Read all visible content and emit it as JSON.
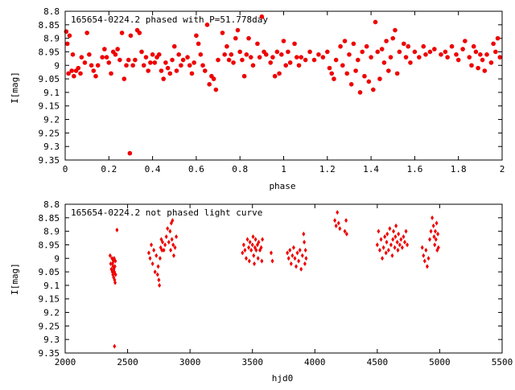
{
  "chart_data": [
    {
      "type": "scatter",
      "title": "165654-0224.2 phased with P=51.778day",
      "xlabel": "phase",
      "ylabel": "I[mag]",
      "xlim": [
        0,
        2
      ],
      "ylim": [
        9.35,
        8.8
      ],
      "y_inverted": true,
      "xticks": [
        "0",
        "0.2",
        "0.4",
        "0.6",
        "0.8",
        "1",
        "1.2",
        "1.4",
        "1.6",
        "1.8",
        "2"
      ],
      "yticks": [
        "8.8",
        "8.85",
        "8.9",
        "8.95",
        "9",
        "9.05",
        "9.1",
        "9.15",
        "9.2",
        "9.25",
        "9.3",
        "9.35"
      ],
      "grid": false,
      "marker_color": "#ee0000",
      "points": [
        [
          0.005,
          8.875
        ],
        [
          0.01,
          8.92
        ],
        [
          0.015,
          9.03
        ],
        [
          0.02,
          8.89
        ],
        [
          0.03,
          9.02
        ],
        [
          0.035,
          8.96
        ],
        [
          0.04,
          9.04
        ],
        [
          0.05,
          9.02
        ],
        [
          0.06,
          9.01
        ],
        [
          0.07,
          9.03
        ],
        [
          0.075,
          8.97
        ],
        [
          0.09,
          8.99
        ],
        [
          0.1,
          8.88
        ],
        [
          0.11,
          8.96
        ],
        [
          0.12,
          9.0
        ],
        [
          0.13,
          9.02
        ],
        [
          0.14,
          9.04
        ],
        [
          0.15,
          9.0
        ],
        [
          0.17,
          8.97
        ],
        [
          0.18,
          8.94
        ],
        [
          0.19,
          8.97
        ],
        [
          0.2,
          8.99
        ],
        [
          0.21,
          9.03
        ],
        [
          0.22,
          8.95
        ],
        [
          0.23,
          8.96
        ],
        [
          0.24,
          8.94
        ],
        [
          0.25,
          8.98
        ],
        [
          0.26,
          8.88
        ],
        [
          0.27,
          9.05
        ],
        [
          0.28,
          9.0
        ],
        [
          0.29,
          8.98
        ],
        [
          0.296,
          9.325
        ],
        [
          0.3,
          8.89
        ],
        [
          0.31,
          9.0
        ],
        [
          0.32,
          8.98
        ],
        [
          0.33,
          8.87
        ],
        [
          0.34,
          8.88
        ],
        [
          0.35,
          8.95
        ],
        [
          0.36,
          9.0
        ],
        [
          0.37,
          8.97
        ],
        [
          0.38,
          9.02
        ],
        [
          0.39,
          8.99
        ],
        [
          0.4,
          8.96
        ],
        [
          0.41,
          8.99
        ],
        [
          0.42,
          8.97
        ],
        [
          0.43,
          8.96
        ],
        [
          0.44,
          9.02
        ],
        [
          0.45,
          9.05
        ],
        [
          0.46,
          8.99
        ],
        [
          0.47,
          9.01
        ],
        [
          0.48,
          9.03
        ],
        [
          0.49,
          8.98
        ],
        [
          0.5,
          8.93
        ],
        [
          0.51,
          9.02
        ],
        [
          0.52,
          8.96
        ],
        [
          0.53,
          9.0
        ],
        [
          0.54,
          8.98
        ],
        [
          0.56,
          8.97
        ],
        [
          0.57,
          9.0
        ],
        [
          0.58,
          9.03
        ],
        [
          0.59,
          8.99
        ],
        [
          0.6,
          8.89
        ],
        [
          0.61,
          8.92
        ],
        [
          0.62,
          8.96
        ],
        [
          0.63,
          9.0
        ],
        [
          0.64,
          9.02
        ],
        [
          0.65,
          8.85
        ],
        [
          0.66,
          9.07
        ],
        [
          0.67,
          9.04
        ],
        [
          0.68,
          9.05
        ],
        [
          0.69,
          9.09
        ],
        [
          0.7,
          8.98
        ],
        [
          0.72,
          8.88
        ],
        [
          0.73,
          8.96
        ],
        [
          0.74,
          8.93
        ],
        [
          0.75,
          8.98
        ],
        [
          0.76,
          8.96
        ],
        [
          0.77,
          8.99
        ],
        [
          0.78,
          8.9
        ],
        [
          0.79,
          8.87
        ],
        [
          0.8,
          8.95
        ],
        [
          0.81,
          8.98
        ],
        [
          0.82,
          9.04
        ],
        [
          0.83,
          8.96
        ],
        [
          0.84,
          8.9
        ],
        [
          0.85,
          8.97
        ],
        [
          0.86,
          9.0
        ],
        [
          0.88,
          8.92
        ],
        [
          0.89,
          8.97
        ],
        [
          0.9,
          8.82
        ],
        [
          0.91,
          8.95
        ],
        [
          0.92,
          8.96
        ],
        [
          0.94,
          8.99
        ],
        [
          0.95,
          8.97
        ],
        [
          0.96,
          9.04
        ],
        [
          0.97,
          8.95
        ],
        [
          0.98,
          9.03
        ],
        [
          0.99,
          8.96
        ],
        [
          1.0,
          8.91
        ],
        [
          1.01,
          9.0
        ],
        [
          1.02,
          8.95
        ],
        [
          1.03,
          8.99
        ],
        [
          1.05,
          8.92
        ],
        [
          1.06,
          8.97
        ],
        [
          1.07,
          9.0
        ],
        [
          1.08,
          8.97
        ],
        [
          1.1,
          8.98
        ],
        [
          1.12,
          8.95
        ],
        [
          1.14,
          8.98
        ],
        [
          1.16,
          8.96
        ],
        [
          1.18,
          8.97
        ],
        [
          1.2,
          8.95
        ],
        [
          1.21,
          9.01
        ],
        [
          1.22,
          9.03
        ],
        [
          1.23,
          9.05
        ],
        [
          1.24,
          8.98
        ],
        [
          1.26,
          8.93
        ],
        [
          1.27,
          9.0
        ],
        [
          1.28,
          8.91
        ],
        [
          1.29,
          9.03
        ],
        [
          1.3,
          8.96
        ],
        [
          1.31,
          9.07
        ],
        [
          1.32,
          8.92
        ],
        [
          1.33,
          9.02
        ],
        [
          1.34,
          8.98
        ],
        [
          1.35,
          9.1
        ],
        [
          1.36,
          8.95
        ],
        [
          1.37,
          9.04
        ],
        [
          1.38,
          8.93
        ],
        [
          1.39,
          9.06
        ],
        [
          1.4,
          8.97
        ],
        [
          1.41,
          9.09
        ],
        [
          1.42,
          8.84
        ],
        [
          1.43,
          8.95
        ],
        [
          1.44,
          9.05
        ],
        [
          1.45,
          8.94
        ],
        [
          1.46,
          8.99
        ],
        [
          1.47,
          8.91
        ],
        [
          1.48,
          9.02
        ],
        [
          1.49,
          8.97
        ],
        [
          1.5,
          8.9
        ],
        [
          1.51,
          8.87
        ],
        [
          1.52,
          9.03
        ],
        [
          1.53,
          8.95
        ],
        [
          1.55,
          8.92
        ],
        [
          1.56,
          8.97
        ],
        [
          1.57,
          8.93
        ],
        [
          1.58,
          8.99
        ],
        [
          1.6,
          8.95
        ],
        [
          1.62,
          8.97
        ],
        [
          1.64,
          8.93
        ],
        [
          1.65,
          8.96
        ],
        [
          1.67,
          8.95
        ],
        [
          1.69,
          8.94
        ],
        [
          1.72,
          8.96
        ],
        [
          1.74,
          8.95
        ],
        [
          1.75,
          8.97
        ],
        [
          1.77,
          8.93
        ],
        [
          1.79,
          8.96
        ],
        [
          1.8,
          8.98
        ],
        [
          1.82,
          8.94
        ],
        [
          1.83,
          8.91
        ],
        [
          1.85,
          8.97
        ],
        [
          1.86,
          9.0
        ],
        [
          1.87,
          8.93
        ],
        [
          1.88,
          8.95
        ],
        [
          1.89,
          9.01
        ],
        [
          1.9,
          8.96
        ],
        [
          1.91,
          8.98
        ],
        [
          1.92,
          9.02
        ],
        [
          1.93,
          8.96
        ],
        [
          1.95,
          8.99
        ],
        [
          1.96,
          8.92
        ],
        [
          1.97,
          8.95
        ],
        [
          1.98,
          8.9
        ],
        [
          1.99,
          8.97
        ]
      ]
    },
    {
      "type": "scatter",
      "title": "165654-0224.2 not phased light curve",
      "xlabel": "hjd0",
      "ylabel": "I[mag]",
      "xlim": [
        2000,
        5500
      ],
      "ylim": [
        9.35,
        8.8
      ],
      "y_inverted": true,
      "xticks": [
        "2000",
        "2500",
        "3000",
        "3500",
        "4000",
        "4500",
        "5000",
        "5500"
      ],
      "yticks": [
        "8.8",
        "8.85",
        "8.9",
        "8.95",
        "9",
        "9.05",
        "9.1",
        "9.15",
        "9.2",
        "9.25",
        "9.3",
        "9.35"
      ],
      "grid": false,
      "marker_color": "#ee0000",
      "points": [
        [
          2360,
          8.99
        ],
        [
          2365,
          9.02
        ],
        [
          2370,
          9.04
        ],
        [
          2375,
          9.0
        ],
        [
          2378,
          9.05
        ],
        [
          2380,
          9.02
        ],
        [
          2382,
          9.06
        ],
        [
          2384,
          9.03
        ],
        [
          2386,
          9.01
        ],
        [
          2388,
          9.07
        ],
        [
          2390,
          9.04
        ],
        [
          2392,
          9.0
        ],
        [
          2394,
          9.05
        ],
        [
          2396,
          9.08
        ],
        [
          2398,
          9.03
        ],
        [
          2400,
          9.09
        ],
        [
          2402,
          9.01
        ],
        [
          2404,
          9.06
        ],
        [
          2395,
          9.325
        ],
        [
          2415,
          8.895
        ],
        [
          2670,
          8.98
        ],
        [
          2680,
          9.0
        ],
        [
          2690,
          8.95
        ],
        [
          2700,
          9.02
        ],
        [
          2710,
          8.97
        ],
        [
          2720,
          9.05
        ],
        [
          2730,
          8.99
        ],
        [
          2740,
          9.06
        ],
        [
          2745,
          9.03
        ],
        [
          2750,
          9.08
        ],
        [
          2755,
          9.1
        ],
        [
          2760,
          9.0
        ],
        [
          2765,
          8.96
        ],
        [
          2770,
          8.93
        ],
        [
          2775,
          8.97
        ],
        [
          2780,
          8.94
        ],
        [
          2790,
          8.97
        ],
        [
          2800,
          8.95
        ],
        [
          2810,
          8.92
        ],
        [
          2820,
          8.89
        ],
        [
          2830,
          8.94
        ],
        [
          2840,
          8.9
        ],
        [
          2845,
          8.97
        ],
        [
          2850,
          8.87
        ],
        [
          2855,
          8.93
        ],
        [
          2860,
          8.86
        ],
        [
          2865,
          8.95
        ],
        [
          2870,
          8.99
        ],
        [
          2880,
          8.96
        ],
        [
          2890,
          8.92
        ],
        [
          3420,
          8.98
        ],
        [
          3430,
          8.95
        ],
        [
          3440,
          8.97
        ],
        [
          3450,
          9.0
        ],
        [
          3460,
          8.93
        ],
        [
          3470,
          8.96
        ],
        [
          3475,
          9.01
        ],
        [
          3480,
          8.94
        ],
        [
          3490,
          8.97
        ],
        [
          3500,
          8.95
        ],
        [
          3505,
          8.92
        ],
        [
          3510,
          8.99
        ],
        [
          3515,
          9.02
        ],
        [
          3520,
          8.96
        ],
        [
          3525,
          8.93
        ],
        [
          3530,
          8.97
        ],
        [
          3540,
          8.95
        ],
        [
          3545,
          9.0
        ],
        [
          3550,
          8.94
        ],
        [
          3560,
          8.97
        ],
        [
          3570,
          8.96
        ],
        [
          3575,
          9.01
        ],
        [
          3580,
          8.93
        ],
        [
          3650,
          8.98
        ],
        [
          3660,
          9.01
        ],
        [
          3780,
          8.98
        ],
        [
          3790,
          9.0
        ],
        [
          3800,
          8.97
        ],
        [
          3810,
          9.02
        ],
        [
          3820,
          8.99
        ],
        [
          3830,
          8.96
        ],
        [
          3840,
          9.0
        ],
        [
          3850,
          9.03
        ],
        [
          3860,
          8.98
        ],
        [
          3870,
          9.01
        ],
        [
          3880,
          8.97
        ],
        [
          3890,
          9.04
        ],
        [
          3900,
          8.99
        ],
        [
          3910,
          8.91
        ],
        [
          3915,
          8.94
        ],
        [
          3920,
          9.02
        ],
        [
          3925,
          8.97
        ],
        [
          3930,
          9.0
        ],
        [
          4160,
          8.86
        ],
        [
          4170,
          8.88
        ],
        [
          4180,
          8.83
        ],
        [
          4190,
          8.87
        ],
        [
          4200,
          8.89
        ],
        [
          4240,
          8.9
        ],
        [
          4250,
          8.86
        ],
        [
          4255,
          8.91
        ],
        [
          4500,
          8.95
        ],
        [
          4510,
          8.9
        ],
        [
          4520,
          8.97
        ],
        [
          4530,
          8.93
        ],
        [
          4540,
          9.0
        ],
        [
          4550,
          8.96
        ],
        [
          4560,
          8.92
        ],
        [
          4570,
          8.98
        ],
        [
          4575,
          8.94
        ],
        [
          4580,
          8.91
        ],
        [
          4590,
          8.97
        ],
        [
          4600,
          8.89
        ],
        [
          4610,
          8.95
        ],
        [
          4620,
          8.99
        ],
        [
          4625,
          8.93
        ],
        [
          4630,
          8.9
        ],
        [
          4640,
          8.96
        ],
        [
          4645,
          8.92
        ],
        [
          4650,
          8.88
        ],
        [
          4660,
          8.94
        ],
        [
          4665,
          8.97
        ],
        [
          4670,
          8.91
        ],
        [
          4680,
          8.95
        ],
        [
          4690,
          8.93
        ],
        [
          4700,
          8.96
        ],
        [
          4710,
          8.92
        ],
        [
          4720,
          8.94
        ],
        [
          4730,
          8.9
        ],
        [
          4740,
          8.95
        ],
        [
          4860,
          8.96
        ],
        [
          4870,
          8.99
        ],
        [
          4880,
          9.01
        ],
        [
          4890,
          8.97
        ],
        [
          4900,
          9.03
        ],
        [
          4910,
          9.0
        ],
        [
          4920,
          8.93
        ],
        [
          4930,
          8.9
        ],
        [
          4940,
          8.85
        ],
        [
          4950,
          8.88
        ],
        [
          4955,
          8.92
        ],
        [
          4960,
          8.95
        ],
        [
          4965,
          8.9
        ],
        [
          4970,
          8.93
        ],
        [
          4975,
          8.87
        ],
        [
          4980,
          8.97
        ],
        [
          4985,
          8.91
        ],
        [
          4990,
          8.96
        ]
      ]
    }
  ]
}
